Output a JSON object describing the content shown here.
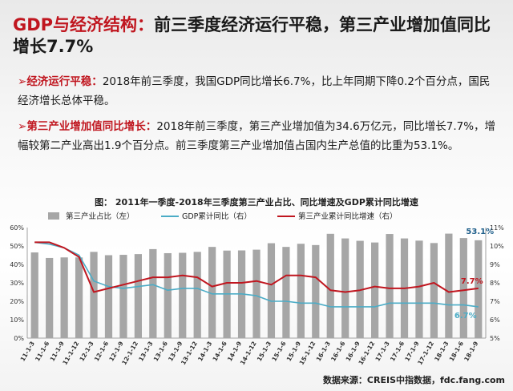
{
  "slide": {
    "title_accent": "GDP与经济结构：",
    "title_rest": "前三季度经济运行平稳，第三产业增加值同比增长7.7%",
    "p1_arrow": "➢",
    "p1_label": "经济运行平稳：",
    "p1_text": "2018年前三季度，我国GDP同比增长6.7%，比上年同期下降0.2个百分点，国民经济增长总体平稳。",
    "p2_arrow": "➢",
    "p2_label": "第三产业增加值同比增长：",
    "p2_text": "2018年前三季度，第三产业增加值为34.6万亿元，同比增长7.7%，增幅较第二产业高出1.9个百分点。前三季度第三产业增加值占国内生产总值的比重为53.1%。",
    "chart_title": "图：  2011年一季度-2018年三季度第三产业占比、同比增速及GDP累计同比增速",
    "source": "数据来源：CREIS中指数据，fdc.fang.com"
  },
  "chart_data": {
    "type": "bar",
    "categories": [
      "11-1-3",
      "11-1-6",
      "11-1-9",
      "11-1-12",
      "12-1-3",
      "12-1-6",
      "12-1-9",
      "12-1-12",
      "13-1-3",
      "13-1-6",
      "13-1-9",
      "13-1-12",
      "14-1-3",
      "14-1-6",
      "14-1-9",
      "14-1-12",
      "15-1-3",
      "15-1-6",
      "15-1-9",
      "15-1-12",
      "16-1-3",
      "16-1-6",
      "16-1-9",
      "16-1-12",
      "17-1-3",
      "17-1-6",
      "17-1-9",
      "17-1-12",
      "18-1-3",
      "18-1-6",
      "18-1-9"
    ],
    "series": [
      {
        "name": "第三产业占比（左）",
        "axis": "left",
        "kind": "bar",
        "color": "#a6a6a6",
        "values": [
          46.5,
          43.5,
          43.8,
          43.8,
          46.8,
          45.0,
          45.2,
          45.6,
          48.3,
          46.1,
          46.3,
          46.8,
          49.5,
          47.5,
          47.6,
          48.0,
          51.5,
          49.5,
          51.2,
          50.5,
          56.6,
          54.1,
          52.8,
          51.9,
          56.5,
          54.1,
          52.9,
          51.6,
          56.7,
          54.3,
          53.1
        ]
      },
      {
        "name": "GDP累计同比（右）",
        "axis": "right",
        "kind": "line",
        "color": "#4bacc6",
        "values": [
          10.2,
          10.1,
          9.9,
          9.5,
          8.1,
          7.8,
          7.7,
          7.8,
          7.9,
          7.6,
          7.7,
          7.7,
          7.4,
          7.4,
          7.4,
          7.3,
          7.0,
          7.0,
          6.9,
          6.9,
          6.7,
          6.7,
          6.7,
          6.7,
          6.9,
          6.9,
          6.9,
          6.9,
          6.8,
          6.8,
          6.7
        ]
      },
      {
        "name": "第三产业累计同比增速（右）",
        "axis": "right",
        "kind": "line",
        "color": "#c0161f",
        "values": [
          10.2,
          10.2,
          9.9,
          9.4,
          7.5,
          7.7,
          7.9,
          8.1,
          8.3,
          8.3,
          8.4,
          8.3,
          7.8,
          8.0,
          8.0,
          8.1,
          7.9,
          8.4,
          8.4,
          8.3,
          7.6,
          7.5,
          7.6,
          7.8,
          7.7,
          7.7,
          7.8,
          8.0,
          7.5,
          7.6,
          7.7
        ]
      }
    ],
    "ylim_left": [
      0,
      60
    ],
    "ylim_right": [
      5,
      11
    ],
    "yticks_left": [
      "0%",
      "10%",
      "20%",
      "30%",
      "40%",
      "50%",
      "60%"
    ],
    "yticks_right": [
      "5%",
      "6%",
      "7%",
      "8%",
      "9%",
      "10%",
      "11%"
    ],
    "annotations": [
      {
        "text": "53.1%",
        "series": 0,
        "color": "#1f5f8b"
      },
      {
        "text": "7.7%",
        "series": 2,
        "color": "#c0161f"
      },
      {
        "text": "6.7%",
        "series": 1,
        "color": "#4bacc6"
      }
    ],
    "legend_position": "top",
    "grid": false
  }
}
